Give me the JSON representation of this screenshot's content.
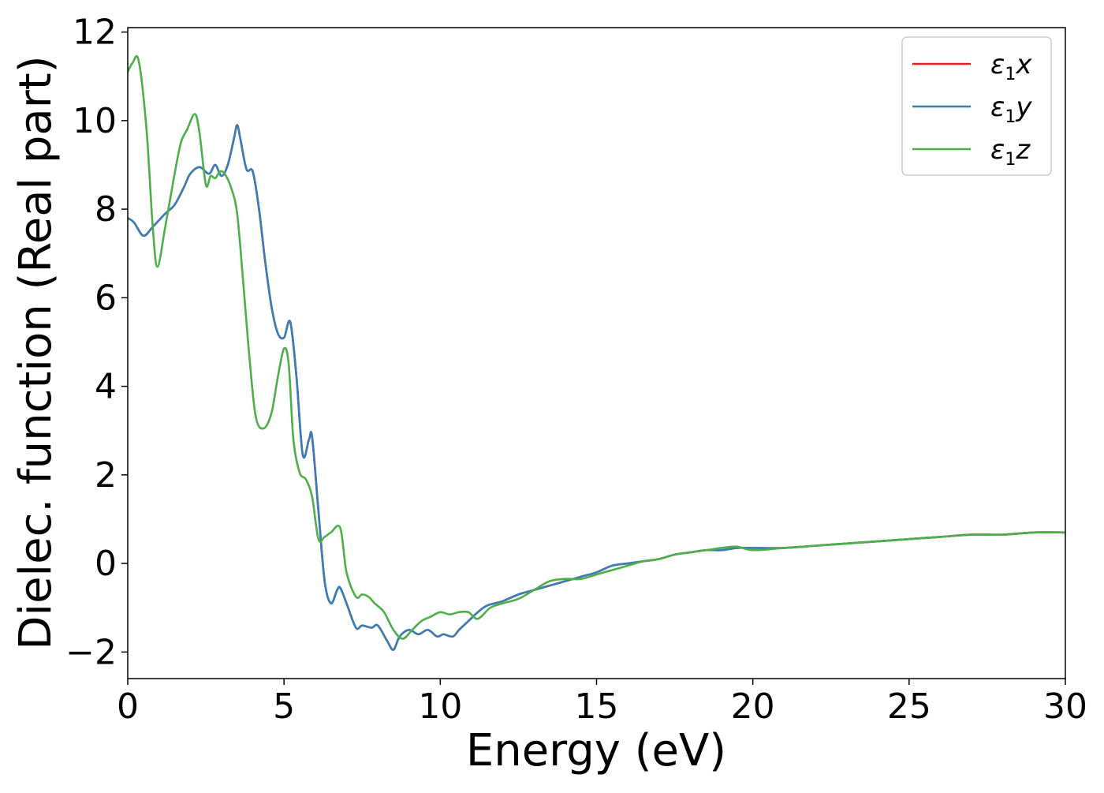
{
  "chart_data": {
    "type": "line",
    "title": "",
    "xlabel": "Energy (eV)",
    "ylabel": "Dielec. function (Real part)",
    "xlim": [
      0,
      30
    ],
    "ylim": [
      -2.6,
      12.1
    ],
    "x_ticks": [
      0,
      5,
      10,
      15,
      20,
      25,
      30
    ],
    "y_ticks": [
      -2,
      0,
      2,
      4,
      6,
      8,
      10,
      12
    ],
    "x_tick_labels": [
      "0",
      "5",
      "10",
      "15",
      "20",
      "25",
      "30"
    ],
    "y_tick_labels": [
      "−2",
      "0",
      "2",
      "4",
      "6",
      "8",
      "10",
      "12"
    ],
    "grid": false,
    "legend_position": "top-right",
    "series": [
      {
        "name": "ε1x",
        "legend": {
          "symbol": "ε",
          "subscript": "1",
          "suffix": "x"
        },
        "color": "#d62728",
        "x": [
          0,
          0.2,
          0.5,
          0.8,
          1.2,
          1.5,
          1.8,
          2.0,
          2.3,
          2.6,
          2.8,
          3.0,
          3.2,
          3.4,
          3.5,
          3.6,
          3.8,
          4.0,
          4.2,
          4.4,
          4.6,
          4.8,
          5.0,
          5.2,
          5.4,
          5.6,
          5.8,
          5.9,
          6.1,
          6.3,
          6.5,
          6.7,
          6.8,
          7.0,
          7.3,
          7.5,
          7.8,
          8.0,
          8.3,
          8.5,
          8.7,
          9.0,
          9.3,
          9.6,
          9.9,
          10.1,
          10.4,
          10.6,
          10.9,
          11.2,
          11.5,
          12.0,
          12.5,
          13.0,
          13.5,
          14.0,
          14.5,
          15.0,
          15.5,
          16.0,
          16.5,
          17.0,
          17.5,
          18.0,
          18.5,
          19.0,
          19.5,
          20.0,
          21.0,
          22.0,
          23.0,
          24.0,
          25.0,
          26.0,
          27.0,
          28.0,
          29.0,
          30.0
        ],
        "y": [
          7.8,
          7.7,
          7.4,
          7.6,
          7.9,
          8.1,
          8.5,
          8.8,
          8.95,
          8.8,
          9.0,
          8.75,
          9.0,
          9.6,
          9.9,
          9.6,
          8.9,
          8.85,
          8.0,
          6.8,
          5.8,
          5.2,
          5.1,
          5.45,
          4.2,
          2.45,
          2.8,
          2.85,
          1.2,
          -0.4,
          -0.9,
          -0.6,
          -0.55,
          -0.9,
          -1.45,
          -1.4,
          -1.45,
          -1.4,
          -1.75,
          -1.95,
          -1.65,
          -1.5,
          -1.6,
          -1.5,
          -1.65,
          -1.6,
          -1.65,
          -1.5,
          -1.3,
          -1.1,
          -0.95,
          -0.85,
          -0.7,
          -0.6,
          -0.5,
          -0.4,
          -0.3,
          -0.2,
          -0.05,
          0.0,
          0.05,
          0.1,
          0.2,
          0.25,
          0.3,
          0.3,
          0.35,
          0.35,
          0.35,
          0.4,
          0.45,
          0.5,
          0.55,
          0.6,
          0.65,
          0.65,
          0.7,
          0.7
        ]
      },
      {
        "name": "ε1y",
        "legend": {
          "symbol": "ε",
          "subscript": "1",
          "suffix": "y"
        },
        "color": "#377eb8",
        "x": [
          0,
          0.2,
          0.5,
          0.8,
          1.2,
          1.5,
          1.8,
          2.0,
          2.3,
          2.6,
          2.8,
          3.0,
          3.2,
          3.4,
          3.5,
          3.6,
          3.8,
          4.0,
          4.2,
          4.4,
          4.6,
          4.8,
          5.0,
          5.2,
          5.4,
          5.6,
          5.8,
          5.9,
          6.1,
          6.3,
          6.5,
          6.7,
          6.8,
          7.0,
          7.3,
          7.5,
          7.8,
          8.0,
          8.3,
          8.5,
          8.7,
          9.0,
          9.3,
          9.6,
          9.9,
          10.1,
          10.4,
          10.6,
          10.9,
          11.2,
          11.5,
          12.0,
          12.5,
          13.0,
          13.5,
          14.0,
          14.5,
          15.0,
          15.5,
          16.0,
          16.5,
          17.0,
          17.5,
          18.0,
          18.5,
          19.0,
          19.5,
          20.0,
          21.0,
          22.0,
          23.0,
          24.0,
          25.0,
          26.0,
          27.0,
          28.0,
          29.0,
          30.0
        ],
        "y": [
          7.8,
          7.7,
          7.4,
          7.6,
          7.9,
          8.1,
          8.5,
          8.8,
          8.95,
          8.8,
          9.0,
          8.75,
          9.0,
          9.6,
          9.9,
          9.6,
          8.9,
          8.85,
          8.0,
          6.8,
          5.8,
          5.2,
          5.1,
          5.45,
          4.2,
          2.45,
          2.8,
          2.85,
          1.2,
          -0.4,
          -0.9,
          -0.6,
          -0.55,
          -0.9,
          -1.45,
          -1.4,
          -1.45,
          -1.4,
          -1.75,
          -1.95,
          -1.65,
          -1.5,
          -1.6,
          -1.5,
          -1.65,
          -1.6,
          -1.65,
          -1.5,
          -1.3,
          -1.1,
          -0.95,
          -0.85,
          -0.7,
          -0.6,
          -0.5,
          -0.4,
          -0.3,
          -0.2,
          -0.05,
          0.0,
          0.05,
          0.1,
          0.2,
          0.25,
          0.3,
          0.3,
          0.35,
          0.35,
          0.35,
          0.4,
          0.45,
          0.5,
          0.55,
          0.6,
          0.65,
          0.65,
          0.7,
          0.7
        ]
      },
      {
        "name": "ε1z",
        "legend": {
          "symbol": "ε",
          "subscript": "1",
          "suffix": "z"
        },
        "color": "#4daf4a",
        "x": [
          0,
          0.15,
          0.35,
          0.6,
          0.8,
          0.95,
          1.2,
          1.5,
          1.7,
          1.9,
          2.15,
          2.3,
          2.5,
          2.65,
          2.8,
          2.95,
          3.1,
          3.3,
          3.5,
          3.7,
          3.9,
          4.1,
          4.35,
          4.6,
          4.8,
          5.0,
          5.15,
          5.3,
          5.5,
          5.7,
          5.9,
          6.1,
          6.3,
          6.5,
          6.8,
          7.0,
          7.3,
          7.5,
          7.7,
          7.9,
          8.2,
          8.5,
          8.8,
          9.1,
          9.4,
          9.7,
          10.0,
          10.3,
          10.6,
          10.9,
          11.2,
          11.6,
          12.0,
          12.5,
          13.0,
          13.5,
          14.0,
          14.5,
          15.0,
          15.5,
          16.0,
          16.5,
          17.0,
          17.5,
          18.0,
          18.5,
          19.0,
          19.5,
          20.0,
          21.0,
          22.0,
          23.0,
          24.0,
          25.0,
          26.0,
          27.0,
          28.0,
          29.0,
          30.0
        ],
        "y": [
          11.1,
          11.3,
          11.35,
          9.8,
          7.6,
          6.7,
          7.6,
          8.8,
          9.5,
          9.8,
          10.15,
          9.7,
          8.55,
          8.75,
          8.7,
          8.85,
          8.8,
          8.5,
          7.9,
          6.3,
          4.6,
          3.3,
          3.05,
          3.4,
          4.2,
          4.85,
          4.5,
          2.8,
          2.05,
          1.9,
          1.5,
          0.55,
          0.6,
          0.7,
          0.8,
          -0.2,
          -0.75,
          -0.7,
          -0.75,
          -0.9,
          -1.1,
          -1.5,
          -1.7,
          -1.5,
          -1.3,
          -1.2,
          -1.1,
          -1.15,
          -1.1,
          -1.1,
          -1.25,
          -1.0,
          -0.9,
          -0.8,
          -0.6,
          -0.4,
          -0.35,
          -0.35,
          -0.25,
          -0.15,
          -0.05,
          0.05,
          0.1,
          0.2,
          0.25,
          0.3,
          0.35,
          0.38,
          0.3,
          0.35,
          0.4,
          0.45,
          0.5,
          0.55,
          0.6,
          0.65,
          0.65,
          0.7,
          0.7
        ]
      }
    ]
  }
}
